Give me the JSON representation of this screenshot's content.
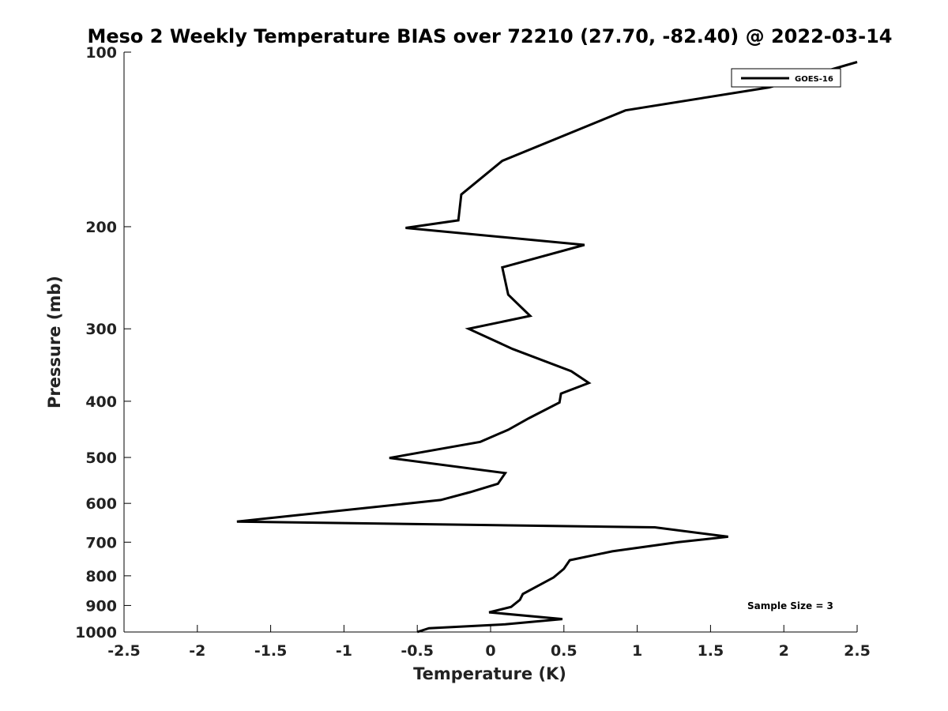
{
  "chart_data": {
    "type": "line",
    "title": "Meso 2 Weekly Temperature BIAS over 72210 (27.70, -82.40) @ 2022-03-14",
    "xlabel": "Temperature (K)",
    "ylabel": "Pressure (mb)",
    "xlim": [
      -2.5,
      2.5
    ],
    "ylim": [
      100,
      1000
    ],
    "yscale": "log",
    "yreversed": true,
    "xticks": [
      -2.5,
      -2,
      -1.5,
      -1,
      -0.5,
      0,
      0.5,
      1,
      1.5,
      2,
      2.5
    ],
    "xtick_labels": [
      "-2.5",
      "-2",
      "-1.5",
      "-1",
      "-0.5",
      "0",
      "0.5",
      "1",
      "1.5",
      "2",
      "2.5"
    ],
    "yticks": [
      100,
      200,
      300,
      400,
      500,
      600,
      700,
      800,
      900,
      1000
    ],
    "ytick_labels": [
      "100",
      "200",
      "300",
      "400",
      "500",
      "600",
      "700",
      "800",
      "900",
      "1000"
    ],
    "legend": {
      "position": "top-right",
      "entries": [
        "GOES-16"
      ]
    },
    "annotation": "Sample Size = 3",
    "series": [
      {
        "name": "GOES-16",
        "color": "#000000",
        "points": [
          [
            2.5,
            104
          ],
          [
            1.9,
            115
          ],
          [
            0.92,
            126
          ],
          [
            0.08,
            154
          ],
          [
            -0.2,
            176
          ],
          [
            -0.22,
            195
          ],
          [
            -0.58,
            201
          ],
          [
            0.64,
            215
          ],
          [
            0.08,
            235
          ],
          [
            0.12,
            262
          ],
          [
            0.27,
            285
          ],
          [
            -0.15,
            300
          ],
          [
            0.15,
            325
          ],
          [
            0.55,
            355
          ],
          [
            0.67,
            372
          ],
          [
            0.48,
            388
          ],
          [
            0.47,
            402
          ],
          [
            0.26,
            428
          ],
          [
            0.12,
            448
          ],
          [
            -0.07,
            470
          ],
          [
            -0.69,
            501
          ],
          [
            0.1,
            532
          ],
          [
            0.05,
            555
          ],
          [
            -0.14,
            574
          ],
          [
            -0.34,
            592
          ],
          [
            -1.73,
            645
          ],
          [
            1.12,
            660
          ],
          [
            1.62,
            685
          ],
          [
            1.28,
            700
          ],
          [
            0.83,
            726
          ],
          [
            0.54,
            752
          ],
          [
            0.5,
            778
          ],
          [
            0.43,
            805
          ],
          [
            0.22,
            860
          ],
          [
            0.2,
            880
          ],
          [
            0.14,
            905
          ],
          [
            -0.01,
            925
          ],
          [
            0.49,
            950
          ],
          [
            0.1,
            970
          ],
          [
            -0.42,
            985
          ],
          [
            -0.5,
            1000
          ]
        ]
      }
    ]
  }
}
